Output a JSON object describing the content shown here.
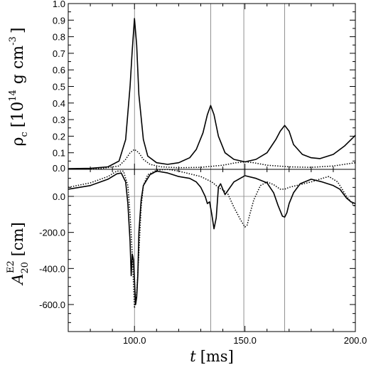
{
  "chart_data": [
    {
      "type": "line",
      "panel": "top",
      "ylabel": "ρc [10¹⁴ g cm⁻³]",
      "ylabel_parts": {
        "rho": "ρ",
        "sub": "c",
        "pre": "[10",
        "exp1": "14",
        "mid": "g cm",
        "exp2": "-3",
        "post": "]"
      },
      "xlim": [
        70,
        200
      ],
      "ylim": [
        0,
        1.0
      ],
      "yticks": [
        "0.0",
        "0.1",
        "0.2",
        "0.3",
        "0.4",
        "0.5",
        "0.6",
        "0.7",
        "0.8",
        "0.9",
        "1.0"
      ],
      "vlines": [
        100,
        134.5,
        149.5,
        168
      ],
      "series": [
        {
          "style": "solid",
          "x": [
            70,
            80,
            88,
            93,
            96,
            98,
            99,
            100,
            101,
            102,
            104,
            106,
            110,
            115,
            120,
            125,
            128,
            131,
            133,
            134.5,
            136,
            138,
            141,
            145,
            150,
            155,
            160,
            164,
            166,
            168,
            170,
            172,
            176,
            180,
            184,
            190,
            195,
            200
          ],
          "y": [
            0.004,
            0.006,
            0.015,
            0.05,
            0.18,
            0.5,
            0.72,
            0.91,
            0.75,
            0.45,
            0.18,
            0.08,
            0.04,
            0.03,
            0.04,
            0.07,
            0.12,
            0.22,
            0.33,
            0.385,
            0.33,
            0.2,
            0.1,
            0.06,
            0.045,
            0.06,
            0.1,
            0.18,
            0.23,
            0.265,
            0.23,
            0.15,
            0.09,
            0.07,
            0.065,
            0.09,
            0.14,
            0.205
          ]
        },
        {
          "style": "dotted",
          "x": [
            70,
            85,
            93,
            96,
            98,
            100,
            102,
            104,
            107,
            112,
            120,
            130,
            140,
            146,
            150,
            154,
            160,
            170,
            180,
            190,
            200
          ],
          "y": [
            0.002,
            0.005,
            0.02,
            0.06,
            0.1,
            0.12,
            0.1,
            0.06,
            0.03,
            0.015,
            0.01,
            0.012,
            0.025,
            0.04,
            0.045,
            0.04,
            0.025,
            0.015,
            0.012,
            0.02,
            0.04
          ]
        }
      ]
    },
    {
      "type": "line",
      "panel": "bottom",
      "ylabel": "A20E2 [cm]",
      "ylabel_parts": {
        "main": "A",
        "sub": "20",
        "sup": "E2",
        "unit": "[cm]"
      },
      "xlabel": "t [ms]",
      "xlabel_parts": {
        "var": "t",
        "unit": "[ms]"
      },
      "xlim": [
        70,
        200
      ],
      "ylim": [
        -750,
        150
      ],
      "xticks": [
        "100.0",
        "150.0",
        "200.0"
      ],
      "yticks": [
        "0.0",
        "-200.0",
        "-400.0",
        "-600.0"
      ],
      "vlines": [
        100,
        134.5,
        149.5,
        168
      ],
      "hline": 0,
      "series": [
        {
          "style": "solid",
          "x": [
            70,
            80,
            88,
            92,
            94,
            96,
            97,
            98,
            98.5,
            99,
            99.5,
            100,
            100.5,
            101,
            101.5,
            102,
            103,
            104,
            105,
            107,
            110,
            115,
            120,
            125,
            128,
            130,
            132,
            133,
            134,
            135,
            136,
            137,
            138,
            139,
            141,
            145,
            150,
            155,
            160,
            163,
            165,
            166,
            167,
            168,
            169,
            170,
            172,
            175,
            180,
            185,
            190,
            193,
            196,
            198,
            200
          ],
          "y": [
            40,
            60,
            95,
            125,
            130,
            80,
            -40,
            -250,
            -440,
            -320,
            -350,
            -460,
            -600,
            -560,
            -440,
            -200,
            -20,
            60,
            80,
            120,
            140,
            130,
            110,
            100,
            80,
            50,
            0,
            -40,
            -30,
            -100,
            -180,
            -120,
            50,
            70,
            10,
            80,
            115,
            100,
            75,
            20,
            -50,
            -80,
            -110,
            -115,
            -90,
            -40,
            20,
            70,
            95,
            80,
            60,
            40,
            -10,
            -30,
            -40
          ]
        },
        {
          "style": "dotted",
          "x": [
            70,
            80,
            88,
            92,
            95,
            97,
            98,
            99,
            100,
            101,
            102,
            103,
            104,
            106,
            110,
            115,
            120,
            125,
            130,
            135,
            138,
            142,
            145,
            148,
            150,
            151,
            152,
            154,
            157,
            160,
            163,
            166,
            168,
            170,
            175,
            180,
            185,
            188,
            192,
            196,
            200
          ],
          "y": [
            50,
            75,
            110,
            140,
            140,
            60,
            -100,
            -320,
            -620,
            -540,
            -320,
            -60,
            60,
            120,
            145,
            150,
            140,
            125,
            110,
            80,
            50,
            20,
            -60,
            -130,
            -170,
            -160,
            -110,
            -20,
            60,
            80,
            65,
            40,
            40,
            50,
            65,
            80,
            100,
            110,
            80,
            0,
            -60
          ]
        }
      ]
    }
  ]
}
